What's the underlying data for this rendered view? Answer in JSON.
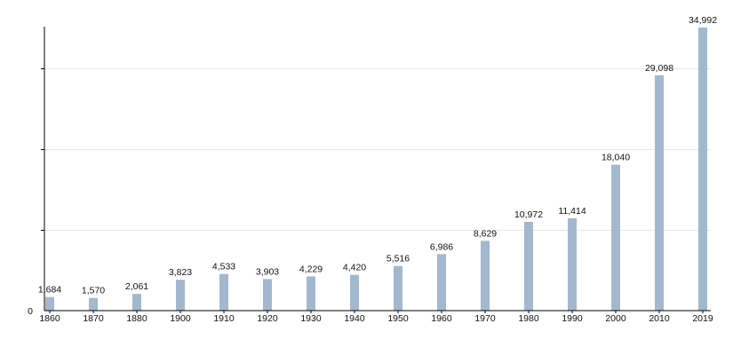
{
  "chart_data": {
    "type": "bar",
    "title": "",
    "xlabel": "",
    "ylabel": "",
    "categories": [
      "1860",
      "1870",
      "1880",
      "1900",
      "1910",
      "1920",
      "1930",
      "1940",
      "1950",
      "1960",
      "1970",
      "1980",
      "1990",
      "2000",
      "2010",
      "2019"
    ],
    "values": [
      1684,
      1570,
      2061,
      3823,
      4533,
      3903,
      4229,
      4420,
      5516,
      6986,
      8629,
      10972,
      11414,
      18040,
      29098,
      34992
    ],
    "data_labels": [
      "1,684",
      "1,570",
      "2,061",
      "3,823",
      "4,533",
      "3,903",
      "4,229",
      "4,420",
      "5,516",
      "6,986",
      "8,629",
      "10,972",
      "11,414",
      "18,040",
      "29,098",
      "34,992"
    ],
    "y_tick_labels": [
      "0"
    ],
    "ylim": [
      0,
      35000
    ],
    "gridlines_at": [
      10000,
      20000,
      30000
    ],
    "grid": true,
    "legend": "none",
    "bar_color": "#a3b8cf"
  }
}
